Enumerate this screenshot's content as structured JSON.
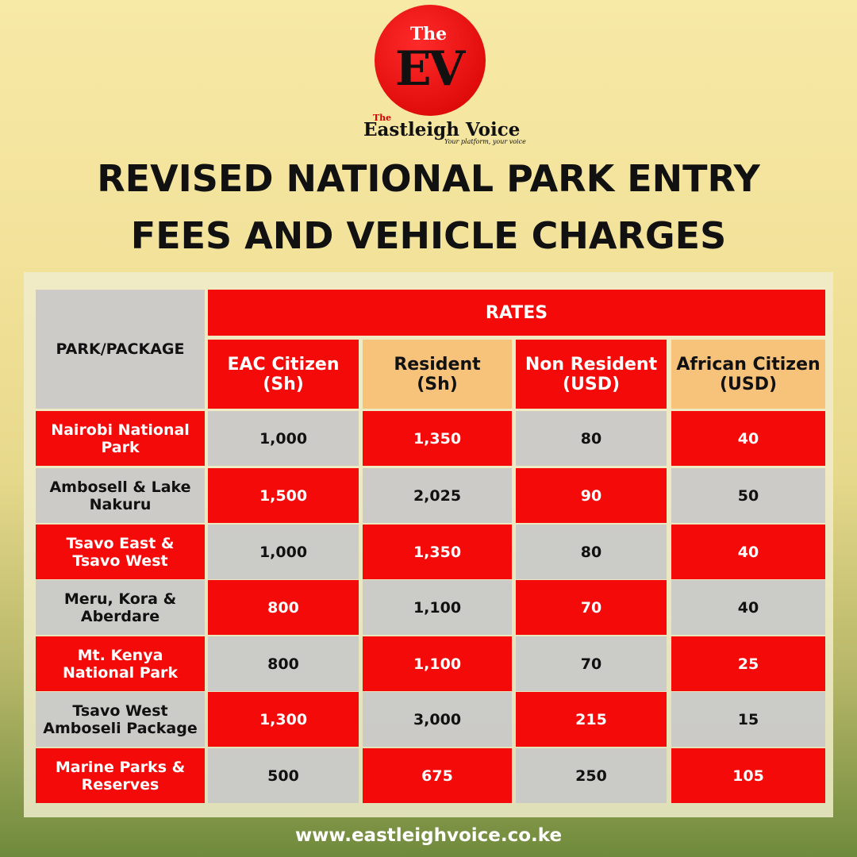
{
  "logo": {
    "the": "The",
    "mark": "EV",
    "brand_the": "The",
    "brand": "Eastleigh Voice",
    "tagline": "Your platform, your voice"
  },
  "title_lines": [
    "REVISED NATIONAL PARK ENTRY",
    "FEES AND VEHICLE CHARGES"
  ],
  "table": {
    "corner": "PARK/PACKAGE",
    "group": "RATES",
    "columns": [
      {
        "label": "EAC Citizen",
        "unit": "(Sh)"
      },
      {
        "label": "Resident",
        "unit": "(Sh)"
      },
      {
        "label": "Non Resident",
        "unit": "(USD)"
      },
      {
        "label": "African Citizen",
        "unit": "(USD)"
      }
    ],
    "rows": [
      [
        "Nairobi National Park",
        "1,000",
        "1,350",
        "80",
        "40"
      ],
      [
        "Ambosell & Lake Nakuru",
        "1,500",
        "2,025",
        "90",
        "50"
      ],
      [
        "Tsavo East & Tsavo West",
        "1,000",
        "1,350",
        "80",
        "40"
      ],
      [
        "Meru, Kora & Aberdare",
        "800",
        "1,100",
        "70",
        "40"
      ],
      [
        "Mt. Kenya National Park",
        "800",
        "1,100",
        "70",
        "25"
      ],
      [
        "Tsavo West Amboseli Package",
        "1,300",
        "3,000",
        "215",
        "15"
      ],
      [
        "Marine Parks & Reserves",
        "500",
        "675",
        "250",
        "105"
      ]
    ]
  },
  "footer": "www.eastleighvoice.co.ke"
}
